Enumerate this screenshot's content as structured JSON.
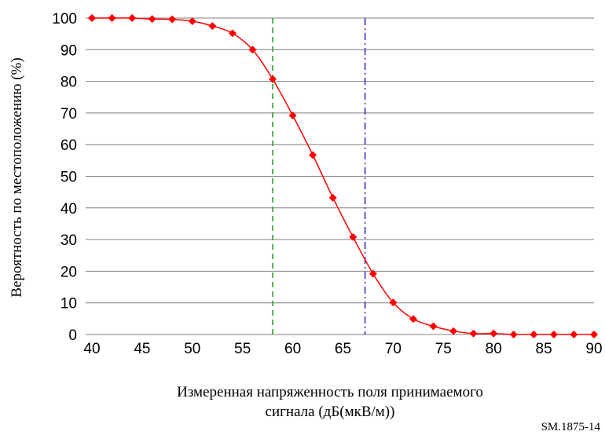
{
  "chart_data": {
    "type": "line",
    "title": "",
    "xlabel_line1": "Измеренная напряженность поля принимаемого",
    "xlabel_line2": "сигнала (дБ(мкВ/м))",
    "ylabel": "Вероятность по местоположению (%)",
    "figure_id": "SM.1875-14",
    "xlim": [
      40,
      90
    ],
    "ylim": [
      0,
      100
    ],
    "xticks": [
      "40",
      "45",
      "50",
      "55",
      "60",
      "65",
      "70",
      "75",
      "80",
      "85",
      "90"
    ],
    "yticks": [
      "0",
      "10",
      "20",
      "30",
      "40",
      "50",
      "60",
      "70",
      "80",
      "90",
      "100"
    ],
    "grid": "horizontal",
    "series": [
      {
        "color": "#ff0000",
        "marker": "diamond",
        "x": [
          40,
          42,
          44,
          46,
          48,
          50,
          52,
          54,
          56,
          58,
          60,
          62,
          64,
          66,
          68,
          70,
          72,
          74,
          76,
          78,
          80,
          82,
          84,
          86,
          88,
          90
        ],
        "y": [
          100,
          100,
          100,
          99.7,
          99.6,
          99,
          97.5,
          95.2,
          90,
          80.7,
          69.2,
          56.7,
          43.2,
          30.8,
          19.2,
          10.1,
          4.9,
          2.6,
          1.1,
          0.3,
          0.3,
          0,
          0,
          0,
          0,
          0
        ]
      }
    ],
    "vlines": [
      {
        "x": 58,
        "color": "#2ca02c",
        "style": "dashed"
      },
      {
        "x": 67.2,
        "color": "#3333cc",
        "style": "dashdot"
      }
    ]
  }
}
